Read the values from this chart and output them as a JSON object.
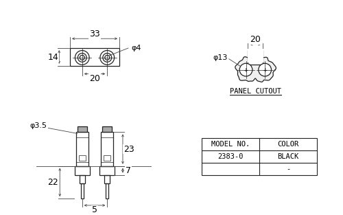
{
  "bg_color": "#ffffff",
  "line_color": "#222222",
  "dim_color": "#444444",
  "table_headers": [
    "MODEL NO.",
    "COLOR"
  ],
  "table_rows": [
    [
      "2383-0",
      "BLACK"
    ],
    [
      "",
      "-"
    ]
  ],
  "panel_cutout_label": "PANEL CUTOUT",
  "dims": {
    "top_33": "33",
    "top_14": "14",
    "top_20": "20",
    "top_phi4": "φ4",
    "side_20": "20",
    "side_phi13": "φ13",
    "front_phi35": "φ3.5",
    "front_23": "23",
    "front_22": "22",
    "front_7": "7",
    "front_5": "5"
  }
}
